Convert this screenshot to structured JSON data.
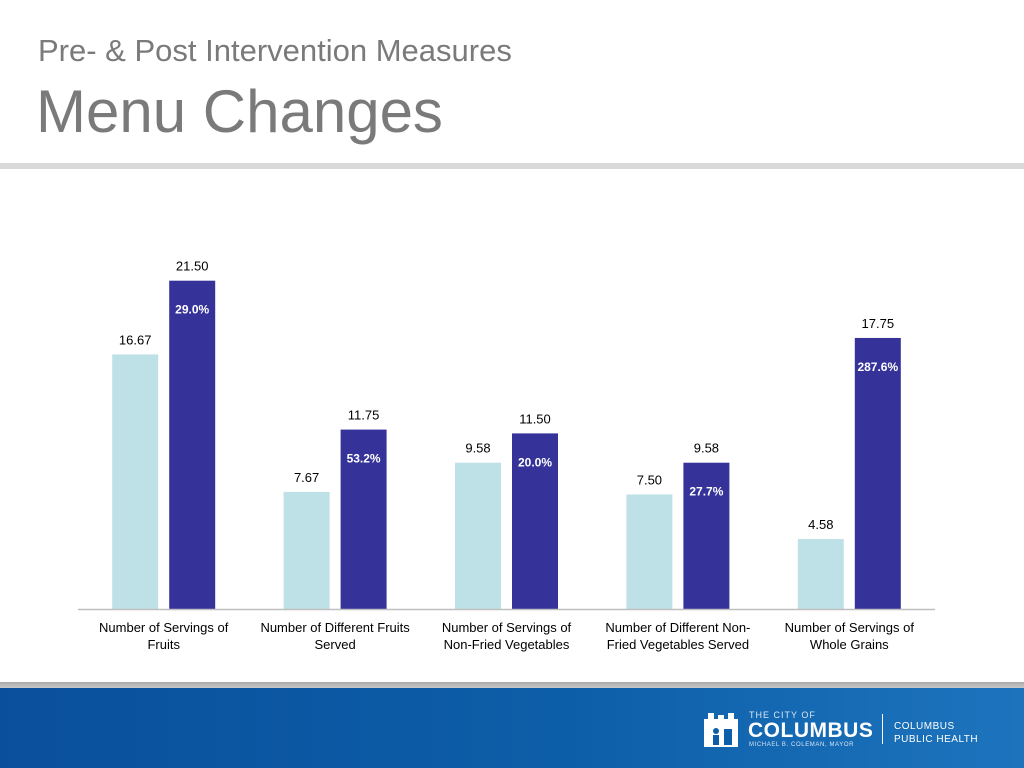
{
  "slide": {
    "subtitle": "Pre- & Post Intervention Measures",
    "title": "Menu Changes"
  },
  "footer": {
    "logo_small": "THE CITY OF",
    "logo_big": "COLUMBUS",
    "logo_tiny": "MICHAEL B. COLEMAN, MAYOR",
    "health_line1": "COLUMBUS",
    "health_line2": "PUBLIC HEALTH",
    "logo_icon": "city-of-columbus-logo-icon"
  },
  "chart_data": {
    "type": "bar",
    "title": "",
    "xlabel": "",
    "ylabel": "",
    "grid": false,
    "legend": "none",
    "categories": [
      [
        "Number of Servings of",
        "Fruits"
      ],
      [
        "Number of Different Fruits",
        "Served"
      ],
      [
        "Number of Servings of",
        "Non-Fried Vegetables"
      ],
      [
        "Number of Different Non-",
        "Fried Vegetables Served"
      ],
      [
        "Number of Servings of",
        "Whole Grains"
      ]
    ],
    "series": [
      {
        "color": "#bde1e6",
        "values": [
          16.67,
          7.67,
          9.58,
          7.5,
          4.58
        ],
        "labels": [
          "16.67",
          "7.67",
          "9.58",
          "7.50",
          "4.58"
        ]
      },
      {
        "color": "#35339a",
        "values": [
          21.5,
          11.75,
          11.5,
          9.58,
          17.75
        ],
        "labels": [
          "21.50",
          "11.75",
          "11.50",
          "9.58",
          "17.75"
        ]
      }
    ],
    "change_labels": [
      "29.0%",
      "53.2%",
      "20.0%",
      "27.7%",
      "287.6%"
    ],
    "ylim": [
      0,
      22.5
    ]
  }
}
